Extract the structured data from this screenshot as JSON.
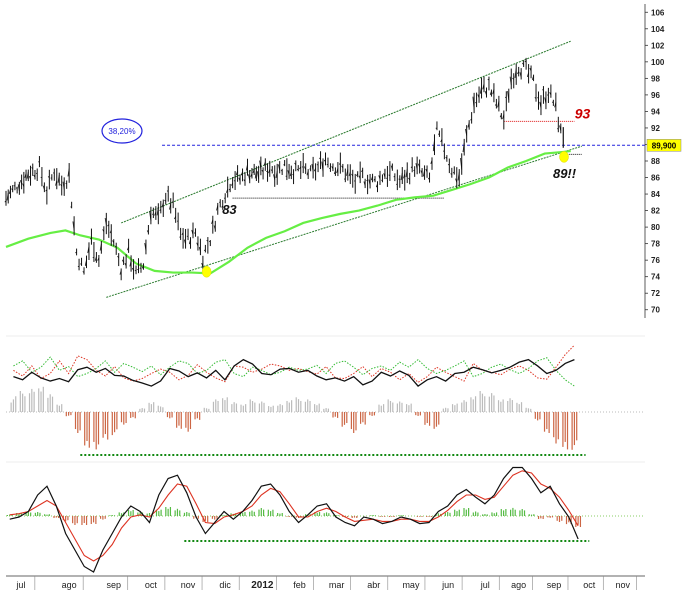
{
  "chart_data": {
    "type": "line",
    "price_panel": {
      "y_ticks": [
        70,
        72,
        74,
        76,
        78,
        80,
        82,
        84,
        86,
        88,
        90,
        92,
        94,
        96,
        98,
        100,
        102,
        104,
        106
      ],
      "ylim": [
        69,
        107
      ],
      "fib_label": "38,20%",
      "fib_level": 89.9,
      "price_label": "89,900",
      "annotations": [
        {
          "text": "83",
          "level": 83.5,
          "x": 5.9
        },
        {
          "text": "93",
          "level": 92.8,
          "x": 15.2
        },
        {
          "text": "89!!",
          "level": 88.6,
          "x": 15.1
        }
      ],
      "markers": [
        {
          "x": 5.4,
          "y": 74.6
        },
        {
          "x": 15.02,
          "y": 88.5
        }
      ],
      "resistance_line": {
        "x": [
          0.0,
          9.8
        ],
        "y": [
          83.5,
          83.5
        ]
      },
      "resistance_93": {
        "x": [
          13.4,
          15.3
        ],
        "y": [
          92.8,
          92.8
        ]
      },
      "channel_upper": {
        "x": [
          3.1,
          15.2
        ],
        "y": [
          80.5,
          102.5
        ]
      },
      "channel_lower": {
        "x": [
          2.7,
          15.5
        ],
        "y": [
          71.5,
          89.8
        ]
      },
      "support_89": {
        "x": [
          15.0,
          15.5
        ],
        "y": [
          88.8,
          88.8
        ]
      },
      "close": [
        [
          0.0,
          83.5
        ],
        [
          0.3,
          85.0
        ],
        [
          0.6,
          86.5
        ],
        [
          0.9,
          87.2
        ],
        [
          1.1,
          84.2
        ],
        [
          1.3,
          86.8
        ],
        [
          1.5,
          85.1
        ],
        [
          1.7,
          86.3
        ],
        [
          1.9,
          77.0
        ],
        [
          2.1,
          74.5
        ],
        [
          2.3,
          78.5
        ],
        [
          2.5,
          76.0
        ],
        [
          2.7,
          80.5
        ],
        [
          2.9,
          78.2
        ],
        [
          3.1,
          75.0
        ],
        [
          3.3,
          77.0
        ],
        [
          3.5,
          74.3
        ],
        [
          3.7,
          75.5
        ],
        [
          3.9,
          82.0
        ],
        [
          4.1,
          81.0
        ],
        [
          4.3,
          83.8
        ],
        [
          4.5,
          82.5
        ],
        [
          4.7,
          79.0
        ],
        [
          4.9,
          78.5
        ],
        [
          5.1,
          79.4
        ],
        [
          5.3,
          76.5
        ],
        [
          5.5,
          78.6
        ],
        [
          5.7,
          82.0
        ],
        [
          5.9,
          84.2
        ],
        [
          6.1,
          86.0
        ],
        [
          6.3,
          85.8
        ],
        [
          6.5,
          86.8
        ],
        [
          6.8,
          86.5
        ],
        [
          7.1,
          87.3
        ],
        [
          7.3,
          86.8
        ],
        [
          7.5,
          87.5
        ],
        [
          7.8,
          86.7
        ],
        [
          8.0,
          87.0
        ],
        [
          8.2,
          86.4
        ],
        [
          8.4,
          87.2
        ],
        [
          8.6,
          88.3
        ],
        [
          8.8,
          87.5
        ],
        [
          9.0,
          87.2
        ],
        [
          9.2,
          86.4
        ],
        [
          9.4,
          85.4
        ],
        [
          9.6,
          86.1
        ],
        [
          9.8,
          85.6
        ],
        [
          10.0,
          85.5
        ],
        [
          10.2,
          86.6
        ],
        [
          10.4,
          86.5
        ],
        [
          10.6,
          85.5
        ],
        [
          10.8,
          86.3
        ],
        [
          11.0,
          87.3
        ],
        [
          11.2,
          86.5
        ],
        [
          11.4,
          85.8
        ],
        [
          11.6,
          91.5
        ],
        [
          11.8,
          89.5
        ],
        [
          12.0,
          87.0
        ],
        [
          12.2,
          86.0
        ],
        [
          12.4,
          91.0
        ],
        [
          12.6,
          95.0
        ],
        [
          12.8,
          96.6
        ],
        [
          13.0,
          97.0
        ],
        [
          13.2,
          95.0
        ],
        [
          13.4,
          93.0
        ],
        [
          13.6,
          98.0
        ],
        [
          13.8,
          99.5
        ],
        [
          14.0,
          99.0
        ],
        [
          14.2,
          97.5
        ],
        [
          14.4,
          95.0
        ],
        [
          14.6,
          96.5
        ],
        [
          14.8,
          94.5
        ],
        [
          15.0,
          89.9
        ]
      ],
      "ma_long": [
        [
          0.0,
          77.6
        ],
        [
          0.6,
          78.6
        ],
        [
          1.2,
          79.3
        ],
        [
          1.6,
          79.6
        ],
        [
          2.0,
          79.0
        ],
        [
          2.5,
          78.5
        ],
        [
          3.0,
          77.5
        ],
        [
          3.5,
          75.6
        ],
        [
          4.0,
          74.7
        ],
        [
          4.5,
          74.5
        ],
        [
          5.0,
          74.5
        ],
        [
          5.5,
          74.4
        ],
        [
          6.0,
          75.8
        ],
        [
          6.5,
          77.5
        ],
        [
          7.0,
          78.7
        ],
        [
          7.5,
          79.5
        ],
        [
          8.0,
          80.5
        ],
        [
          8.5,
          81.1
        ],
        [
          9.0,
          81.6
        ],
        [
          9.5,
          82.0
        ],
        [
          10.0,
          82.6
        ],
        [
          10.5,
          83.3
        ],
        [
          11.0,
          83.6
        ],
        [
          11.5,
          83.8
        ],
        [
          12.0,
          84.5
        ],
        [
          12.5,
          85.2
        ],
        [
          13.0,
          86.0
        ],
        [
          13.5,
          87.2
        ],
        [
          14.0,
          88.0
        ],
        [
          14.5,
          88.9
        ],
        [
          15.0,
          89.1
        ],
        [
          15.2,
          89.2
        ]
      ]
    },
    "oscillator_1": {
      "black": [
        0.45,
        0.4,
        0.52,
        0.43,
        0.38,
        0.42,
        0.37,
        0.56,
        0.6,
        0.52,
        0.58,
        0.47,
        0.46,
        0.39,
        0.35,
        0.3,
        0.38,
        0.58,
        0.54,
        0.45,
        0.51,
        0.43,
        0.55,
        0.4,
        0.62,
        0.72,
        0.65,
        0.5,
        0.48,
        0.57,
        0.58,
        0.52,
        0.55,
        0.46,
        0.4,
        0.43,
        0.38,
        0.45,
        0.32,
        0.38,
        0.52,
        0.46,
        0.54,
        0.47,
        0.3,
        0.4,
        0.45,
        0.38,
        0.5,
        0.52,
        0.6,
        0.56,
        0.51,
        0.55,
        0.6,
        0.68,
        0.72,
        0.62,
        0.5,
        0.55,
        0.66,
        0.72
      ],
      "red": [
        0.55,
        0.46,
        0.62,
        0.42,
        0.5,
        0.7,
        0.5,
        0.78,
        0.72,
        0.55,
        0.46,
        0.61,
        0.43,
        0.38,
        0.42,
        0.5,
        0.57,
        0.52,
        0.4,
        0.47,
        0.64,
        0.52,
        0.43,
        0.37,
        0.62,
        0.6,
        0.52,
        0.57,
        0.65,
        0.62,
        0.55,
        0.58,
        0.53,
        0.49,
        0.61,
        0.43,
        0.42,
        0.5,
        0.61,
        0.45,
        0.58,
        0.52,
        0.4,
        0.5,
        0.36,
        0.45,
        0.6,
        0.52,
        0.45,
        0.38,
        0.66,
        0.55,
        0.52,
        0.48,
        0.57,
        0.62,
        0.55,
        0.43,
        0.41,
        0.6,
        0.8,
        0.95
      ],
      "green": [
        0.62,
        0.7,
        0.52,
        0.6,
        0.76,
        0.55,
        0.61,
        0.45,
        0.5,
        0.58,
        0.7,
        0.52,
        0.66,
        0.6,
        0.53,
        0.62,
        0.48,
        0.6,
        0.7,
        0.66,
        0.5,
        0.55,
        0.68,
        0.72,
        0.5,
        0.45,
        0.6,
        0.55,
        0.48,
        0.52,
        0.6,
        0.55,
        0.57,
        0.63,
        0.5,
        0.66,
        0.7,
        0.6,
        0.48,
        0.58,
        0.62,
        0.55,
        0.68,
        0.6,
        0.72,
        0.58,
        0.5,
        0.55,
        0.62,
        0.7,
        0.45,
        0.5,
        0.6,
        0.65,
        0.56,
        0.5,
        0.58,
        0.7,
        0.75,
        0.55,
        0.4,
        0.3
      ],
      "histogram": [
        0.4,
        0.5,
        0.55,
        0.6,
        0.45,
        0.2,
        -0.1,
        -0.5,
        -0.85,
        -0.95,
        -0.7,
        -0.55,
        -0.3,
        -0.15,
        0.1,
        0.25,
        0.15,
        -0.15,
        -0.4,
        -0.5,
        -0.2,
        0.1,
        0.3,
        0.35,
        0.25,
        0.2,
        0.3,
        0.25,
        0.15,
        0.2,
        0.3,
        0.35,
        0.3,
        0.2,
        0.1,
        -0.15,
        -0.35,
        -0.5,
        -0.3,
        -0.1,
        0.2,
        0.3,
        0.25,
        0.2,
        -0.1,
        -0.35,
        -0.4,
        0.1,
        0.2,
        0.3,
        0.4,
        0.5,
        0.45,
        0.3,
        0.35,
        0.25,
        0.1,
        -0.2,
        -0.5,
        -0.8,
        -0.95,
        -0.9
      ]
    },
    "oscillator_2": {
      "black": [
        0.48,
        0.5,
        0.55,
        0.7,
        0.78,
        0.6,
        0.35,
        0.2,
        0.05,
        0.0,
        0.2,
        0.35,
        0.5,
        0.6,
        0.55,
        0.45,
        0.7,
        0.85,
        0.88,
        0.72,
        0.5,
        0.35,
        0.45,
        0.55,
        0.48,
        0.55,
        0.65,
        0.78,
        0.8,
        0.7,
        0.55,
        0.45,
        0.52,
        0.6,
        0.62,
        0.5,
        0.45,
        0.42,
        0.5,
        0.48,
        0.44,
        0.46,
        0.5,
        0.48,
        0.44,
        0.45,
        0.55,
        0.6,
        0.7,
        0.75,
        0.68,
        0.62,
        0.7,
        0.85,
        0.95,
        0.95,
        0.85,
        0.72,
        0.78,
        0.62,
        0.5,
        0.3
      ],
      "red": [
        0.52,
        0.53,
        0.55,
        0.6,
        0.65,
        0.6,
        0.45,
        0.3,
        0.15,
        0.1,
        0.15,
        0.25,
        0.4,
        0.5,
        0.52,
        0.5,
        0.58,
        0.7,
        0.8,
        0.78,
        0.62,
        0.45,
        0.44,
        0.5,
        0.52,
        0.55,
        0.6,
        0.7,
        0.76,
        0.73,
        0.62,
        0.5,
        0.5,
        0.55,
        0.58,
        0.55,
        0.5,
        0.46,
        0.47,
        0.48,
        0.46,
        0.46,
        0.48,
        0.48,
        0.46,
        0.46,
        0.5,
        0.56,
        0.64,
        0.7,
        0.7,
        0.66,
        0.68,
        0.78,
        0.88,
        0.92,
        0.9,
        0.8,
        0.76,
        0.68,
        0.56,
        0.42
      ],
      "histogram": [
        0.1,
        0.15,
        0.25,
        0.2,
        0.1,
        -0.1,
        -0.3,
        -0.45,
        -0.5,
        -0.4,
        -0.2,
        0.05,
        0.2,
        0.3,
        0.25,
        0.15,
        0.35,
        0.45,
        0.4,
        0.2,
        -0.15,
        -0.3,
        -0.2,
        0.05,
        0.15,
        0.2,
        0.3,
        0.4,
        0.35,
        0.15,
        -0.05,
        -0.1,
        0.1,
        0.2,
        0.2,
        0.05,
        -0.05,
        -0.1,
        0.0,
        0.05,
        -0.05,
        -0.05,
        0.05,
        0.0,
        -0.05,
        -0.05,
        0.15,
        0.2,
        0.35,
        0.4,
        0.25,
        0.1,
        0.2,
        0.35,
        0.45,
        0.35,
        0.1,
        -0.15,
        -0.1,
        -0.3,
        -0.45,
        -0.55
      ]
    },
    "x_labels": [
      {
        "text": "jul",
        "pos": 0.4,
        "bold": false
      },
      {
        "text": "ago",
        "pos": 1.7,
        "bold": false
      },
      {
        "text": "sep",
        "pos": 2.9,
        "bold": false
      },
      {
        "text": "oct",
        "pos": 3.9,
        "bold": false
      },
      {
        "text": "nov",
        "pos": 4.9,
        "bold": false
      },
      {
        "text": "dic",
        "pos": 5.9,
        "bold": false
      },
      {
        "text": "2012",
        "pos": 6.9,
        "bold": true
      },
      {
        "text": "feb",
        "pos": 7.9,
        "bold": false
      },
      {
        "text": "mar",
        "pos": 8.9,
        "bold": false
      },
      {
        "text": "abr",
        "pos": 9.9,
        "bold": false
      },
      {
        "text": "may",
        "pos": 10.9,
        "bold": false
      },
      {
        "text": "jun",
        "pos": 11.9,
        "bold": false
      },
      {
        "text": "jul",
        "pos": 12.9,
        "bold": false
      },
      {
        "text": "ago",
        "pos": 13.8,
        "bold": false
      },
      {
        "text": "sep",
        "pos": 14.75,
        "bold": false
      },
      {
        "text": "oct",
        "pos": 15.7,
        "bold": false
      },
      {
        "text": "nov",
        "pos": 16.6,
        "bold": false
      }
    ],
    "xlim": [
      0,
      17.2
    ],
    "colors": {
      "price": "#111111",
      "ma_long": "#66ee44",
      "channel": "#2e7d32",
      "fib": "#2222dd",
      "red_level": "#dd1111",
      "marker": "#ffff00",
      "price_label_bg": "#ffff00",
      "osc_red": "#dd3322",
      "osc_green": "#33bb33",
      "hist_pos_1": "#bbbbbb",
      "hist_neg": "#cc6644",
      "hist_pos_2": "#55bb44",
      "baseline": "#118811",
      "axis": "#333333",
      "text_red": "#cc0000"
    }
  }
}
